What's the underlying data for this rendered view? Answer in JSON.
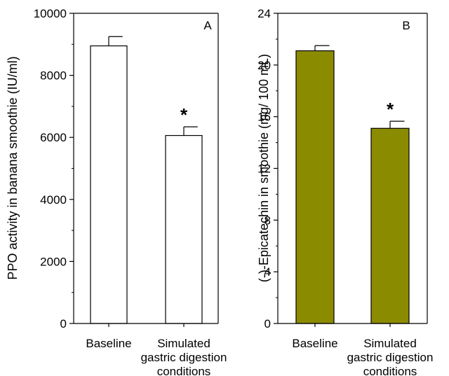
{
  "chart_data": [
    {
      "type": "bar",
      "panel_label": "A",
      "ylabel": "PPO activity in banana smoothie (IU/ml)",
      "ylim": [
        0,
        10000
      ],
      "yticks": [
        "0",
        "2000",
        "4000",
        "6000",
        "8000",
        "10000"
      ],
      "ytick_values": [
        0,
        2000,
        4000,
        6000,
        8000,
        10000
      ],
      "categories": [
        [
          "Baseline"
        ],
        [
          "Simulated",
          "gastric digestion",
          "conditions"
        ]
      ],
      "values": [
        8950,
        6060
      ],
      "errors": [
        300,
        280
      ],
      "significance": [
        "",
        "*"
      ],
      "bar_color": "#ffffff",
      "grid": false
    },
    {
      "type": "bar",
      "panel_label": "B",
      "ylabel": "(-)-Epicatechin in smoothie (mg/ 100 mL)",
      "ylim": [
        0,
        24
      ],
      "yticks": [
        "0",
        "4",
        "8",
        "12",
        "16",
        "20",
        "24"
      ],
      "ytick_values": [
        0,
        4,
        8,
        12,
        16,
        20,
        24
      ],
      "categories": [
        [
          "Baseline"
        ],
        [
          "Simulated",
          "gastric digestion",
          "conditions"
        ]
      ],
      "values": [
        21.1,
        15.1
      ],
      "errors": [
        0.4,
        0.55
      ],
      "significance": [
        "",
        "*"
      ],
      "bar_color": "#8b8b00",
      "grid": false
    }
  ]
}
